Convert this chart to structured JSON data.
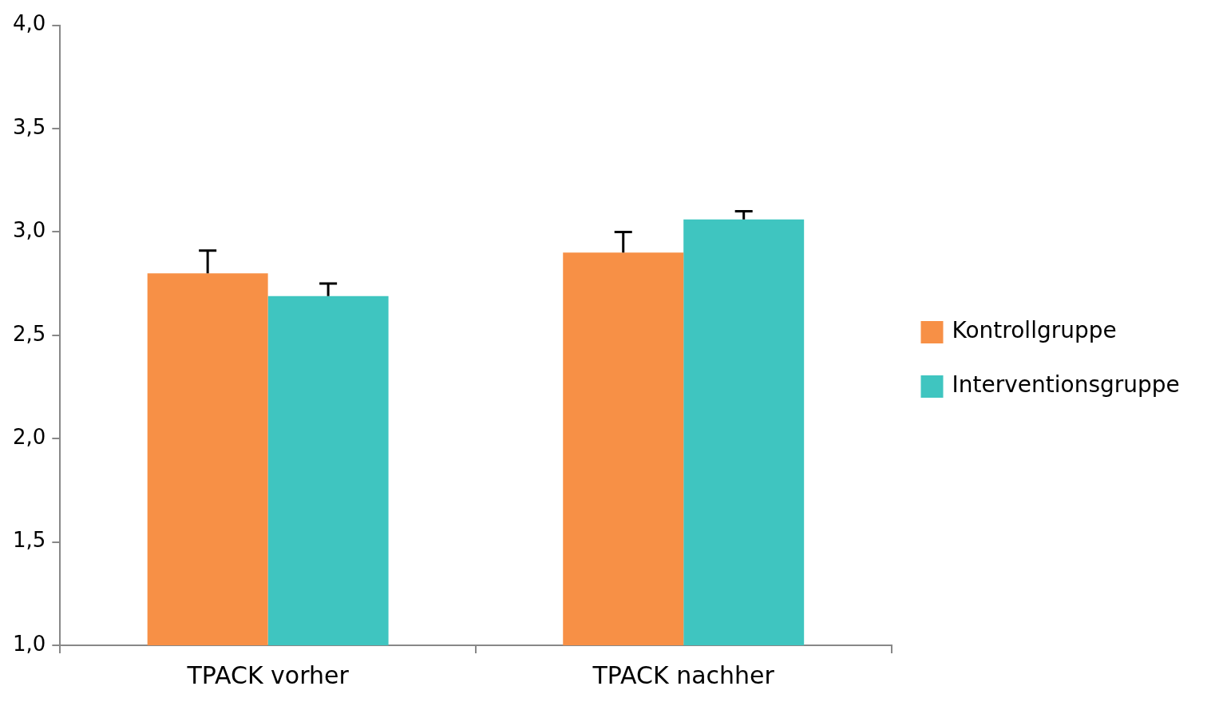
{
  "chart_data": {
    "type": "bar",
    "categories": [
      "TPACK vorher",
      "TPACK nachher"
    ],
    "series": [
      {
        "name": "Kontrollgruppe",
        "color": "#f79046",
        "values": [
          2.8,
          2.9
        ],
        "errors": [
          [
            2.8,
            2.91
          ],
          [
            2.9,
            3.0
          ]
        ]
      },
      {
        "name": "Interventionsgruppe",
        "color": "#3fc5c0",
        "values": [
          2.69,
          3.06
        ],
        "errors": [
          [
            2.69,
            2.75
          ],
          [
            3.06,
            3.1
          ]
        ]
      }
    ],
    "ylim": [
      1,
      4
    ],
    "yticks": [
      {
        "value": 1,
        "label": "1,0"
      },
      {
        "value": 1.5,
        "label": "1,5"
      },
      {
        "value": 2,
        "label": "2,0"
      },
      {
        "value": 2.5,
        "label": "2,5"
      },
      {
        "value": 3,
        "label": "3,0"
      },
      {
        "value": 3.5,
        "label": "3,5"
      },
      {
        "value": 4,
        "label": "4,0"
      }
    ],
    "grid": false,
    "legend": "right"
  }
}
